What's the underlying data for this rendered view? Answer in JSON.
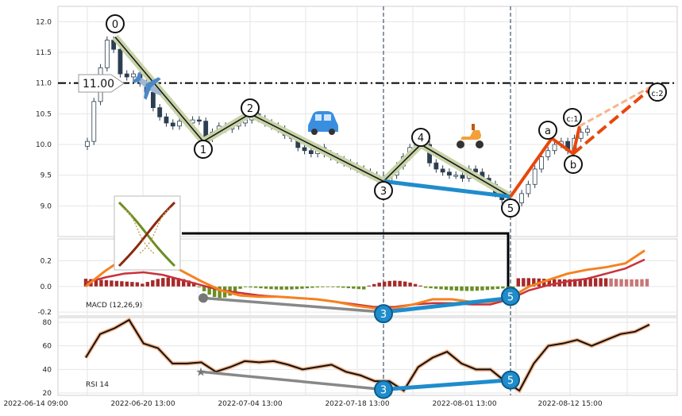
{
  "chart_data": {
    "type": "line",
    "subtype": "elliott-wave-analysis",
    "price_panel": {
      "ylim": [
        8.5,
        12.25
      ],
      "yticks": [
        "12.0",
        "11.5",
        "11.0",
        "10.5",
        "10.0",
        "9.5",
        "9.0"
      ],
      "ytick_values": [
        12.0,
        11.5,
        11.0,
        10.5,
        10.0,
        9.5,
        9.0
      ],
      "level_line": 11.0,
      "level_label": "11.00",
      "candles_close": [
        10.05,
        10.7,
        11.25,
        11.7,
        11.55,
        11.15,
        11.1,
        11.15,
        11.0,
        10.85,
        10.6,
        10.45,
        10.35,
        10.3,
        10.38,
        10.35,
        10.4,
        10.38,
        10.1,
        10.2,
        10.3,
        10.25,
        10.3,
        10.35,
        10.4,
        10.5,
        10.42,
        10.35,
        10.3,
        10.25,
        10.15,
        10.1,
        9.95,
        9.9,
        9.85,
        9.95,
        9.85,
        9.8,
        9.75,
        9.7,
        9.65,
        9.6,
        9.55,
        9.5,
        9.45,
        9.4,
        9.5,
        9.65,
        9.8,
        9.95,
        10.05,
        10.0,
        9.7,
        9.6,
        9.55,
        9.5,
        9.5,
        9.45,
        9.6,
        9.55,
        9.45,
        9.35,
        9.2,
        9.1,
        8.95,
        9.05,
        9.2,
        9.35,
        9.6,
        9.8,
        9.9,
        10.0,
        10.05,
        9.9,
        10.1,
        10.2,
        10.25
      ],
      "wave_points": [
        {
          "label": "0",
          "value": 11.75
        },
        {
          "label": "1",
          "value": 10.05
        },
        {
          "label": "2",
          "value": 10.5
        },
        {
          "label": "3",
          "value": 9.4
        },
        {
          "label": "4",
          "value": 10.0
        },
        {
          "label": "5",
          "value": 9.15
        }
      ],
      "corrective_points": [
        {
          "label": "a",
          "value": 10.1
        },
        {
          "label": "b",
          "value": 9.85
        },
        {
          "label": "c:1",
          "value": 10.3
        },
        {
          "label": "c:2",
          "value": 11.0
        }
      ]
    },
    "macd_panel": {
      "label": "MACD (12,26,9)",
      "ylim": [
        -0.23,
        0.37
      ],
      "yticks": [
        "0.2",
        "0.0",
        "-0.2"
      ],
      "ytick_values": [
        0.2,
        0.0,
        -0.2
      ],
      "macd": [
        0.0,
        0.12,
        0.22,
        0.24,
        0.2,
        0.12,
        0.04,
        -0.03,
        -0.07,
        -0.08,
        -0.08,
        -0.09,
        -0.1,
        -0.12,
        -0.15,
        -0.17,
        -0.17,
        -0.14,
        -0.1,
        -0.1,
        -0.12,
        -0.12,
        -0.09,
        0.0,
        0.05,
        0.1,
        0.13,
        0.15,
        0.18,
        0.28
      ],
      "signal": [
        0.03,
        0.07,
        0.1,
        0.11,
        0.09,
        0.05,
        0.01,
        -0.03,
        -0.05,
        -0.07,
        -0.08,
        -0.09,
        -0.1,
        -0.12,
        -0.14,
        -0.16,
        -0.16,
        -0.14,
        -0.13,
        -0.13,
        -0.14,
        -0.14,
        -0.1,
        -0.03,
        0.01,
        0.04,
        0.06,
        0.1,
        0.14,
        0.21
      ],
      "divergence_points": [
        {
          "label": "3",
          "value": -0.2
        },
        {
          "label": "5",
          "value": -0.09
        }
      ]
    },
    "rsi_panel": {
      "label": "RSI 14",
      "ylim": [
        18,
        84
      ],
      "yticks": [
        "80",
        "60",
        "40",
        "20"
      ],
      "ytick_values": [
        80,
        60,
        40,
        20
      ],
      "rsi": [
        50,
        70,
        75,
        82,
        62,
        58,
        45,
        45,
        46,
        38,
        42,
        47,
        46,
        47,
        44,
        40,
        42,
        44,
        38,
        35,
        30,
        30,
        22,
        42,
        50,
        55,
        45,
        40,
        40,
        30,
        22,
        45,
        60,
        62,
        65,
        60,
        65,
        70,
        72,
        78
      ],
      "divergence_points": [
        {
          "label": "3",
          "value": 23
        },
        {
          "label": "5",
          "value": 31
        }
      ]
    },
    "x_tick_labels": [
      "2022-06-14 09:00",
      "2022-06-20 13:00",
      "2022-07-04 13:00",
      "2022-07-18 13:00",
      "2022-08-01 13:00",
      "2022-08-12 15:00"
    ],
    "legend": "none",
    "grid": true,
    "colors": {
      "impulse_wave": "#1a1a1a",
      "impulse_glow": "#c8d3a8",
      "corrective_wave": "#e8470a",
      "projection": "#f5b58c",
      "divergence_down": "#888888",
      "divergence_up": "#1f8ccc",
      "macd_line": "#f5821f",
      "signal_line": "#c8323a",
      "hist_positive": "#a52a2a",
      "hist_negative": "#6b8e23",
      "hist_projection": "#c77777",
      "rsi_line": "#111111",
      "rsi_glow": "#f5b58c",
      "level_line": "#000000",
      "marker_vlines": "#44546a"
    },
    "icons": [
      "airplane-icon",
      "car-icon",
      "scooter-icon",
      "dna-diagram-thumbnail"
    ]
  }
}
